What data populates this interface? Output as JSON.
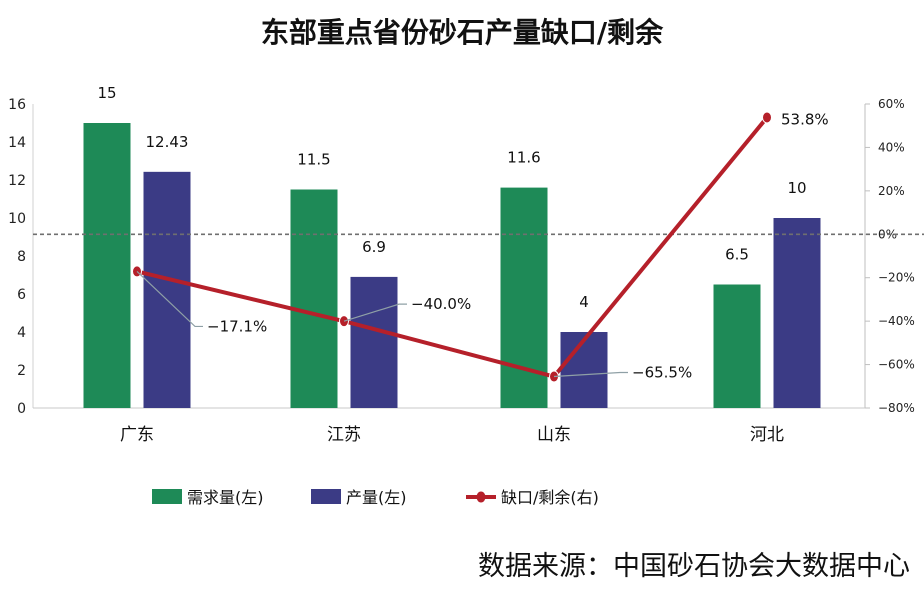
{
  "chart_data": {
    "type": "bar",
    "title": "东部重点省份砂石产量缺口/剩余",
    "categories": [
      "广东",
      "江苏",
      "山东",
      "河北"
    ],
    "series": [
      {
        "name": "需求量(左)",
        "type": "bar",
        "axis": "left",
        "color": "#1e8a57",
        "values": [
          15,
          11.5,
          11.6,
          6.5
        ],
        "labels": [
          "15",
          "11.5",
          "11.6",
          "6.5"
        ]
      },
      {
        "name": "产量(左)",
        "type": "bar",
        "axis": "left",
        "color": "#3b3b85",
        "values": [
          12.43,
          6.9,
          4,
          10
        ],
        "labels": [
          "12.43",
          "6.9",
          "4",
          "10"
        ]
      },
      {
        "name": "缺口/剩余(右)",
        "type": "line",
        "axis": "right",
        "color": "#b5202a",
        "values": [
          -17.1,
          -40.0,
          -65.5,
          53.8
        ],
        "labels": [
          "−17.1%",
          "−40.0%",
          "−65.5%",
          "53.8%"
        ]
      }
    ],
    "y_left": {
      "min": 0,
      "max": 16,
      "ticks": [
        "0",
        "2",
        "4",
        "6",
        "8",
        "10",
        "12",
        "14",
        "16"
      ]
    },
    "y_right": {
      "min": -80,
      "max": 60,
      "ticks": [
        "60%",
        "40%",
        "20%",
        "0%",
        "−20%",
        "−40%",
        "−60%",
        "−80%"
      ]
    },
    "reference_line": {
      "axis": "right",
      "value": 0,
      "style": "dashed"
    },
    "legend": "bottom-center",
    "source": "数据来源：中国砂石协会大数据中心"
  }
}
